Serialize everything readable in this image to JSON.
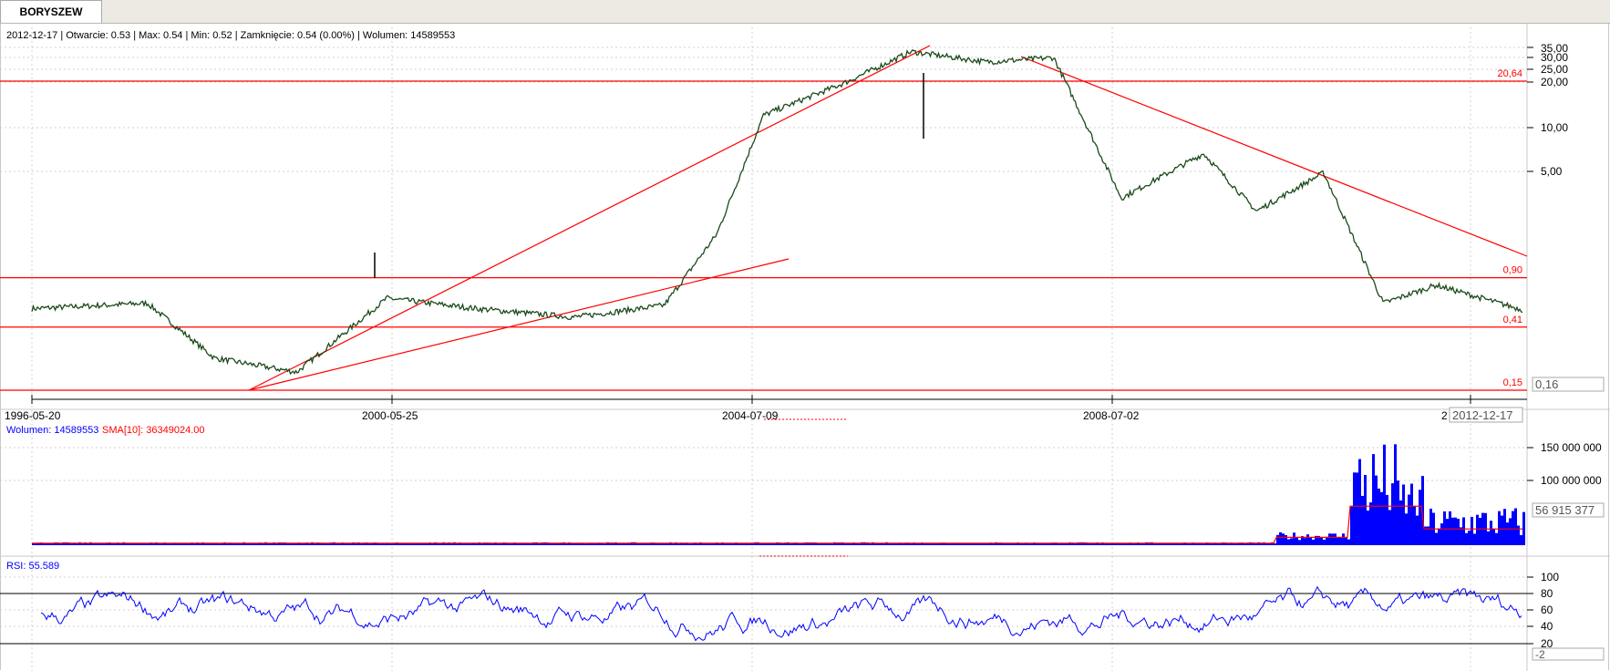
{
  "tab": {
    "label": "BORYSZEW"
  },
  "price_panel": {
    "info_line": "2012-12-17 | Otwarcie: 0.53 | Max: 0.54 | Min: 0.52 | Zamknięcie: 0.54 (0.00%)  | Wolumen: 14589553",
    "y_ticks": [
      "35,00",
      "30,00",
      "25,00",
      "20,00",
      "10,00",
      "5,00"
    ],
    "current_value": "0,16",
    "h_lines": [
      {
        "label": "20,64",
        "value": 20.64
      },
      {
        "label": "0,90",
        "value": 0.9
      },
      {
        "label": "0,41",
        "value": 0.41
      },
      {
        "label": "0,15",
        "value": 0.15
      }
    ]
  },
  "x_axis": {
    "ticks": [
      "1996-05-20",
      "2000-05-25",
      "2004-07-09",
      "2008-07-02"
    ],
    "cursor_label": "2012-12-17"
  },
  "volume_panel": {
    "label": "Wolumen: 14589553",
    "sma_label": "SMA[10]: 36349024.00",
    "y_ticks": [
      "150 000 000",
      "100 000 000"
    ],
    "current_value": "56 915 377"
  },
  "rsi_panel": {
    "label": "RSI: 55.589",
    "y_ticks": [
      "100",
      "80",
      "60",
      "40",
      "20"
    ],
    "current_value": "-2"
  },
  "colors": {
    "price": "#1a4a1a",
    "trend": "#ff0000",
    "volume": "#0000ff",
    "sma": "#ff0000",
    "rsi": "#0000ff",
    "levels": "#000000"
  },
  "chart_data": [
    {
      "type": "line",
      "scale": "log",
      "series": [
        {
          "name": "BORYSZEW",
          "x": [
            "1996-05-20",
            "1997-09-01",
            "1998-06-01",
            "1999-05-01",
            "2000-05-01",
            "2001-05-01",
            "2002-06-01",
            "2003-06-01",
            "2004-01-01",
            "2004-07-09",
            "2005-06-01",
            "2006-03-01",
            "2007-01-01",
            "2007-10-01",
            "2008-07-02",
            "2009-06-01",
            "2010-01-01",
            "2010-10-01",
            "2011-06-01",
            "2012-01-01",
            "2012-12-17"
          ],
          "values": [
            0.55,
            0.6,
            0.25,
            0.2,
            0.65,
            0.55,
            0.48,
            0.58,
            1.8,
            12,
            20,
            33,
            28,
            30,
            3.2,
            6.5,
            2.6,
            4.8,
            0.6,
            0.8,
            0.54
          ]
        }
      ],
      "h_levels": [
        20.64,
        0.9,
        0.41,
        0.15
      ]
    },
    {
      "type": "bar",
      "series": [
        {
          "name": "Wolumen",
          "x": [
            "1996-05-20",
            "2008-07-02",
            "2010-06-01",
            "2011-03-01",
            "2012-12-17"
          ],
          "values": [
            3000000,
            3000000,
            20000000,
            160000000,
            14589553
          ]
        },
        {
          "name": "SMA[10]",
          "values": [
            36349024
          ]
        }
      ]
    },
    {
      "type": "line",
      "series": [
        {
          "name": "RSI",
          "values": [
            55.589
          ]
        }
      ],
      "h_levels": [
        80,
        20
      ],
      "ylim": [
        0,
        100
      ]
    }
  ]
}
